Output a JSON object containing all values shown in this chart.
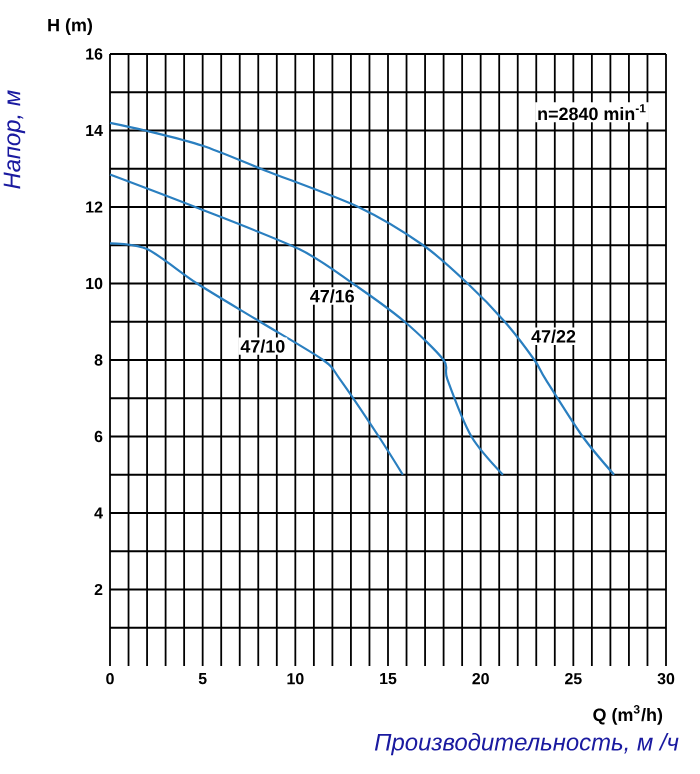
{
  "chart_data": {
    "type": "line",
    "xlabel": "Производительность, м /ч",
    "ylabel": "Напор, м",
    "annotations": [
      "H (m)",
      "Q (m$^{3}$/h)",
      "n=2840 min$^{-1}$"
    ],
    "series": [
      {
        "name": "47/22",
        "color": "#2a7fc0",
        "x": [
          0,
          1.9,
          5,
          8.4,
          13.4,
          16.9,
          19.3,
          21.3,
          22.9,
          23.5,
          25.5,
          27.2
        ],
        "values": [
          14.2,
          14.0,
          13.6,
          12.95,
          12.0,
          11.0,
          10.0,
          9.0,
          8.0,
          7.5,
          6.0,
          5.0
        ]
      },
      {
        "name": "47/16",
        "color": "#2a7fc0",
        "x": [
          0,
          4.6,
          10.2,
          13.1,
          15.9,
          18.0,
          18.2,
          19.5,
          21.2
        ],
        "values": [
          12.85,
          12.0,
          10.9,
          10.0,
          9.0,
          8.0,
          7.5,
          6.0,
          5.0
        ]
      },
      {
        "name": "47/10",
        "color": "#2a7fc0",
        "x": [
          0,
          2,
          4.7,
          8.1,
          11.5,
          12.4,
          14.5,
          15.8
        ],
        "values": [
          11.05,
          10.9,
          10.0,
          9.0,
          8.0,
          7.5,
          6.0,
          5.0
        ]
      }
    ],
    "xlim": [
      0,
      30
    ],
    "ylim": [
      0,
      16
    ],
    "xticks": [
      0,
      {
        "value": 1,
        "label": null
      },
      {
        "value": 2,
        "label": null
      },
      {
        "value": 3,
        "label": null
      },
      {
        "value": 4,
        "label": null
      },
      5,
      {
        "value": 6,
        "label": null
      },
      {
        "value": 7,
        "label": null
      },
      {
        "value": 8,
        "label": null
      },
      {
        "value": 9,
        "label": null
      },
      10,
      {
        "value": 11,
        "label": null
      },
      {
        "value": 12,
        "label": null
      },
      {
        "value": 13,
        "label": null
      },
      {
        "value": 14,
        "label": null
      },
      15,
      {
        "value": 16,
        "label": null
      },
      {
        "value": 17,
        "label": null
      },
      {
        "value": 18,
        "label": null
      },
      {
        "value": 19,
        "label": null
      },
      20,
      {
        "value": 21,
        "label": null
      },
      {
        "value": 22,
        "label": null
      },
      {
        "value": 23,
        "label": null
      },
      {
        "value": 24,
        "label": null
      },
      25,
      {
        "value": 26,
        "label": null
      },
      {
        "value": 27,
        "label": null
      },
      {
        "value": 28,
        "label": null
      },
      {
        "value": 29,
        "label": null
      },
      30
    ],
    "yticks": [
      {
        "value": 1,
        "label": null
      },
      2,
      {
        "value": 3,
        "label": null
      },
      4,
      {
        "value": 5,
        "label": null
      },
      6,
      {
        "value": 7,
        "label": null
      },
      8,
      {
        "value": 9,
        "label": null
      },
      10,
      {
        "value": 11,
        "label": null
      },
      12,
      {
        "value": 13,
        "label": null
      },
      14,
      {
        "value": 15,
        "label": null
      },
      16
    ],
    "grid": true,
    "marker": "none",
    "line_style": "solid"
  }
}
